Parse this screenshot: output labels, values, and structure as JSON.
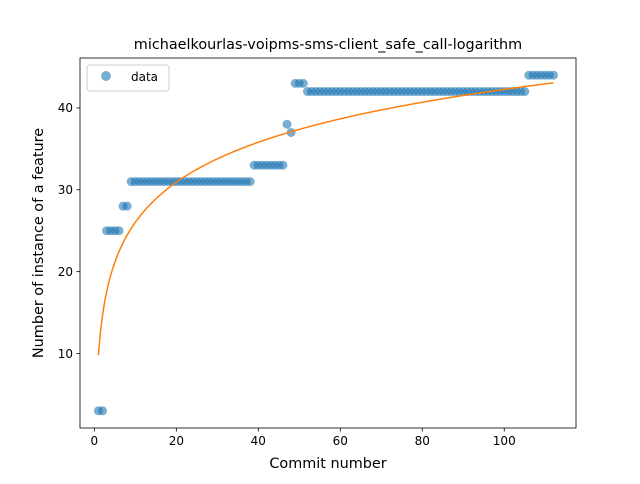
{
  "chart_data": {
    "type": "scatter",
    "title": "michaelkourlas-voipms-sms-client_safe_call-logarithm",
    "xlabel": "Commit number",
    "ylabel": "Number of instance of a feature",
    "xlim": [
      -3.5,
      117.5
    ],
    "ylim": [
      0.9,
      46.1
    ],
    "xticks": [
      0,
      20,
      40,
      60,
      80,
      100
    ],
    "yticks": [
      10,
      20,
      30,
      40
    ],
    "legend": {
      "position": "upper-left",
      "entries": [
        "data"
      ]
    },
    "colors": {
      "data": "#1f77b4",
      "fit": "#ff7f0e"
    },
    "series": [
      {
        "name": "data",
        "kind": "scatter",
        "runs": [
          {
            "x_start": 1,
            "x_end": 2,
            "y": 3
          },
          {
            "x_start": 3,
            "x_end": 6,
            "y": 25
          },
          {
            "x_start": 7,
            "x_end": 8,
            "y": 28
          },
          {
            "x_start": 9,
            "x_end": 38,
            "y": 31
          },
          {
            "x_start": 39,
            "x_end": 46,
            "y": 33
          },
          {
            "x_start": 47,
            "x_end": 47,
            "y": 38
          },
          {
            "x_start": 48,
            "x_end": 48,
            "y": 37
          },
          {
            "x_start": 49,
            "x_end": 51,
            "y": 43
          },
          {
            "x_start": 52,
            "x_end": 105,
            "y": 42
          },
          {
            "x_start": 106,
            "x_end": 112,
            "y": 44
          }
        ]
      },
      {
        "kind": "line",
        "model": "logarithmic",
        "a": 7.05,
        "b": 9.8,
        "x_range": [
          1,
          112
        ]
      }
    ]
  }
}
